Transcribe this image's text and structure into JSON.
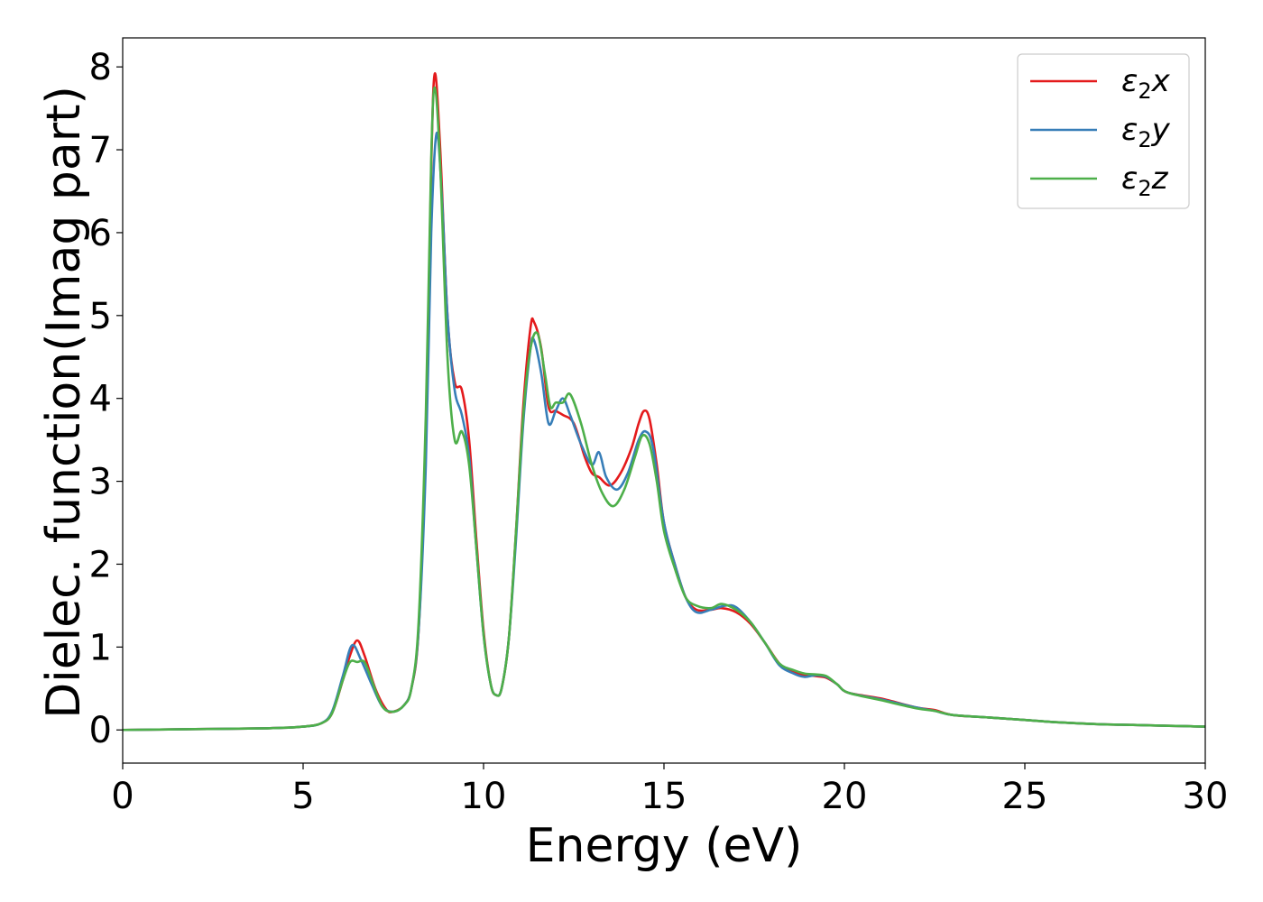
{
  "chart_data": {
    "type": "line",
    "title": "",
    "xlabel": "Energy (eV)",
    "ylabel": "Dielec. function(Imag part)",
    "xlim": [
      0,
      30
    ],
    "ylim": [
      -0.4,
      8.35
    ],
    "xticks": [
      0,
      5,
      10,
      15,
      20,
      25,
      30
    ],
    "yticks": [
      0,
      1,
      2,
      3,
      4,
      5,
      6,
      7,
      8
    ],
    "grid": false,
    "legend_position": "top-right",
    "series": [
      {
        "name": "ε₂x",
        "legend_base": "ε",
        "legend_sub": "2",
        "legend_suffix": "x",
        "color": "#e41a1c",
        "points": [
          [
            0,
            0
          ],
          [
            2,
            0.01
          ],
          [
            4,
            0.02
          ],
          [
            5,
            0.04
          ],
          [
            5.5,
            0.08
          ],
          [
            5.8,
            0.2
          ],
          [
            6.1,
            0.6
          ],
          [
            6.3,
            0.9
          ],
          [
            6.5,
            1.08
          ],
          [
            6.7,
            0.9
          ],
          [
            7.0,
            0.5
          ],
          [
            7.3,
            0.25
          ],
          [
            7.5,
            0.22
          ],
          [
            7.8,
            0.3
          ],
          [
            8.0,
            0.5
          ],
          [
            8.2,
            1.2
          ],
          [
            8.4,
            3.5
          ],
          [
            8.55,
            6.8
          ],
          [
            8.65,
            7.92
          ],
          [
            8.8,
            7.0
          ],
          [
            9.0,
            5.0
          ],
          [
            9.2,
            4.2
          ],
          [
            9.4,
            4.1
          ],
          [
            9.6,
            3.5
          ],
          [
            9.8,
            2.3
          ],
          [
            10.0,
            1.2
          ],
          [
            10.2,
            0.55
          ],
          [
            10.35,
            0.42
          ],
          [
            10.5,
            0.5
          ],
          [
            10.7,
            1.1
          ],
          [
            10.9,
            2.4
          ],
          [
            11.1,
            3.9
          ],
          [
            11.3,
            4.85
          ],
          [
            11.4,
            4.92
          ],
          [
            11.6,
            4.6
          ],
          [
            11.8,
            3.9
          ],
          [
            12.0,
            3.85
          ],
          [
            12.2,
            3.8
          ],
          [
            12.5,
            3.7
          ],
          [
            12.8,
            3.3
          ],
          [
            13.0,
            3.1
          ],
          [
            13.2,
            3.05
          ],
          [
            13.5,
            2.95
          ],
          [
            13.8,
            3.1
          ],
          [
            14.1,
            3.4
          ],
          [
            14.3,
            3.7
          ],
          [
            14.45,
            3.85
          ],
          [
            14.6,
            3.75
          ],
          [
            14.8,
            3.2
          ],
          [
            15.0,
            2.5
          ],
          [
            15.3,
            2.0
          ],
          [
            15.6,
            1.6
          ],
          [
            15.9,
            1.45
          ],
          [
            16.3,
            1.45
          ],
          [
            16.6,
            1.47
          ],
          [
            17.0,
            1.42
          ],
          [
            17.4,
            1.28
          ],
          [
            17.8,
            1.05
          ],
          [
            18.2,
            0.8
          ],
          [
            18.5,
            0.72
          ],
          [
            18.8,
            0.67
          ],
          [
            19.2,
            0.65
          ],
          [
            19.5,
            0.63
          ],
          [
            19.8,
            0.55
          ],
          [
            20.1,
            0.45
          ],
          [
            21.0,
            0.38
          ],
          [
            22.0,
            0.27
          ],
          [
            22.5,
            0.24
          ],
          [
            23.0,
            0.18
          ],
          [
            24.0,
            0.15
          ],
          [
            25.0,
            0.12
          ],
          [
            26.0,
            0.09
          ],
          [
            27.0,
            0.07
          ],
          [
            28.0,
            0.06
          ],
          [
            29.0,
            0.05
          ],
          [
            29.5,
            0.045
          ],
          [
            30.0,
            0.04
          ]
        ]
      },
      {
        "name": "ε₂y",
        "legend_base": "ε",
        "legend_sub": "2",
        "legend_suffix": "y",
        "color": "#377eb8",
        "points": [
          [
            0,
            0
          ],
          [
            2,
            0.01
          ],
          [
            4,
            0.02
          ],
          [
            5,
            0.04
          ],
          [
            5.5,
            0.08
          ],
          [
            5.8,
            0.22
          ],
          [
            6.1,
            0.65
          ],
          [
            6.35,
            1.02
          ],
          [
            6.6,
            0.85
          ],
          [
            6.9,
            0.55
          ],
          [
            7.2,
            0.28
          ],
          [
            7.5,
            0.22
          ],
          [
            7.8,
            0.3
          ],
          [
            8.0,
            0.5
          ],
          [
            8.2,
            1.2
          ],
          [
            8.4,
            3.2
          ],
          [
            8.55,
            6.0
          ],
          [
            8.7,
            7.2
          ],
          [
            8.85,
            6.4
          ],
          [
            9.0,
            5.0
          ],
          [
            9.2,
            4.1
          ],
          [
            9.4,
            3.8
          ],
          [
            9.6,
            3.3
          ],
          [
            9.8,
            2.2
          ],
          [
            10.0,
            1.15
          ],
          [
            10.2,
            0.55
          ],
          [
            10.35,
            0.42
          ],
          [
            10.5,
            0.5
          ],
          [
            10.7,
            1.1
          ],
          [
            10.9,
            2.3
          ],
          [
            11.1,
            3.7
          ],
          [
            11.3,
            4.6
          ],
          [
            11.4,
            4.7
          ],
          [
            11.6,
            4.3
          ],
          [
            11.8,
            3.7
          ],
          [
            12.0,
            3.85
          ],
          [
            12.2,
            4.0
          ],
          [
            12.4,
            3.8
          ],
          [
            12.7,
            3.45
          ],
          [
            13.0,
            3.2
          ],
          [
            13.2,
            3.35
          ],
          [
            13.4,
            3.05
          ],
          [
            13.7,
            2.9
          ],
          [
            14.0,
            3.1
          ],
          [
            14.3,
            3.5
          ],
          [
            14.5,
            3.6
          ],
          [
            14.7,
            3.4
          ],
          [
            15.0,
            2.5
          ],
          [
            15.3,
            2.0
          ],
          [
            15.6,
            1.6
          ],
          [
            15.9,
            1.42
          ],
          [
            16.3,
            1.45
          ],
          [
            16.7,
            1.5
          ],
          [
            17.0,
            1.48
          ],
          [
            17.4,
            1.3
          ],
          [
            17.8,
            1.05
          ],
          [
            18.2,
            0.78
          ],
          [
            18.6,
            0.68
          ],
          [
            18.9,
            0.64
          ],
          [
            19.2,
            0.66
          ],
          [
            19.5,
            0.64
          ],
          [
            19.8,
            0.55
          ],
          [
            20.1,
            0.45
          ],
          [
            21.0,
            0.37
          ],
          [
            22.0,
            0.27
          ],
          [
            22.5,
            0.23
          ],
          [
            23.0,
            0.18
          ],
          [
            24.0,
            0.15
          ],
          [
            25.0,
            0.12
          ],
          [
            26.0,
            0.09
          ],
          [
            27.0,
            0.07
          ],
          [
            28.0,
            0.06
          ],
          [
            29.0,
            0.05
          ],
          [
            29.5,
            0.045
          ],
          [
            30.0,
            0.04
          ]
        ]
      },
      {
        "name": "ε₂z",
        "legend_base": "ε",
        "legend_sub": "2",
        "legend_suffix": "z",
        "color": "#4daf4a",
        "points": [
          [
            0,
            0
          ],
          [
            2,
            0.01
          ],
          [
            4,
            0.02
          ],
          [
            5,
            0.04
          ],
          [
            5.5,
            0.08
          ],
          [
            5.8,
            0.2
          ],
          [
            6.1,
            0.6
          ],
          [
            6.3,
            0.82
          ],
          [
            6.5,
            0.82
          ],
          [
            6.7,
            0.82
          ],
          [
            6.9,
            0.6
          ],
          [
            7.2,
            0.28
          ],
          [
            7.5,
            0.22
          ],
          [
            7.8,
            0.3
          ],
          [
            8.0,
            0.5
          ],
          [
            8.2,
            1.3
          ],
          [
            8.4,
            3.8
          ],
          [
            8.55,
            6.9
          ],
          [
            8.65,
            7.75
          ],
          [
            8.8,
            6.8
          ],
          [
            9.0,
            4.5
          ],
          [
            9.2,
            3.5
          ],
          [
            9.4,
            3.6
          ],
          [
            9.6,
            3.2
          ],
          [
            9.8,
            2.2
          ],
          [
            10.0,
            1.15
          ],
          [
            10.2,
            0.55
          ],
          [
            10.35,
            0.42
          ],
          [
            10.5,
            0.5
          ],
          [
            10.7,
            1.1
          ],
          [
            10.9,
            2.4
          ],
          [
            11.1,
            3.8
          ],
          [
            11.3,
            4.6
          ],
          [
            11.5,
            4.78
          ],
          [
            11.7,
            4.3
          ],
          [
            11.85,
            3.9
          ],
          [
            12.0,
            3.95
          ],
          [
            12.2,
            3.95
          ],
          [
            12.4,
            4.05
          ],
          [
            12.7,
            3.7
          ],
          [
            13.0,
            3.2
          ],
          [
            13.3,
            2.85
          ],
          [
            13.6,
            2.7
          ],
          [
            13.9,
            2.9
          ],
          [
            14.2,
            3.3
          ],
          [
            14.4,
            3.55
          ],
          [
            14.6,
            3.45
          ],
          [
            14.8,
            3.0
          ],
          [
            15.0,
            2.4
          ],
          [
            15.3,
            1.95
          ],
          [
            15.6,
            1.6
          ],
          [
            15.9,
            1.5
          ],
          [
            16.3,
            1.47
          ],
          [
            16.6,
            1.52
          ],
          [
            17.0,
            1.45
          ],
          [
            17.4,
            1.3
          ],
          [
            17.8,
            1.05
          ],
          [
            18.2,
            0.8
          ],
          [
            18.6,
            0.72
          ],
          [
            18.9,
            0.68
          ],
          [
            19.2,
            0.67
          ],
          [
            19.5,
            0.65
          ],
          [
            19.8,
            0.55
          ],
          [
            20.1,
            0.45
          ],
          [
            21.0,
            0.36
          ],
          [
            22.0,
            0.26
          ],
          [
            22.5,
            0.23
          ],
          [
            23.0,
            0.18
          ],
          [
            24.0,
            0.15
          ],
          [
            25.0,
            0.12
          ],
          [
            26.0,
            0.09
          ],
          [
            27.0,
            0.07
          ],
          [
            28.0,
            0.06
          ],
          [
            29.0,
            0.05
          ],
          [
            29.5,
            0.045
          ],
          [
            30.0,
            0.04
          ]
        ]
      }
    ]
  }
}
